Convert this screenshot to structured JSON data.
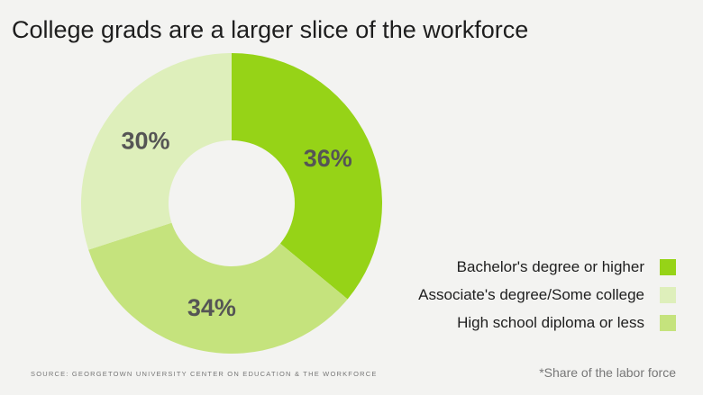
{
  "chart_data": {
    "type": "pie",
    "title": "College grads are a larger slice of the workforce",
    "donut": true,
    "categories": [
      "Bachelor's degree or higher",
      "High school diploma or less",
      "Associate's degree/Some college"
    ],
    "values": [
      36,
      34,
      30
    ],
    "value_labels": [
      "36%",
      "34%",
      "30%"
    ],
    "colors": [
      "#96d317",
      "#c5e37d",
      "#deefbb"
    ],
    "legend": {
      "placement": "bottom-right",
      "entries": [
        {
          "label": "Bachelor's degree or higher",
          "color": "#96d317"
        },
        {
          "label": "Associate's degree/Some college",
          "color": "#deefbb"
        },
        {
          "label": "High school diploma or less",
          "color": "#c5e37d"
        }
      ]
    },
    "source": "SOURCE: GEORGETOWN UNIVERSITY CENTER ON EDUCATION & THE WORKFORCE",
    "footnote": "*Share of the labor force"
  }
}
